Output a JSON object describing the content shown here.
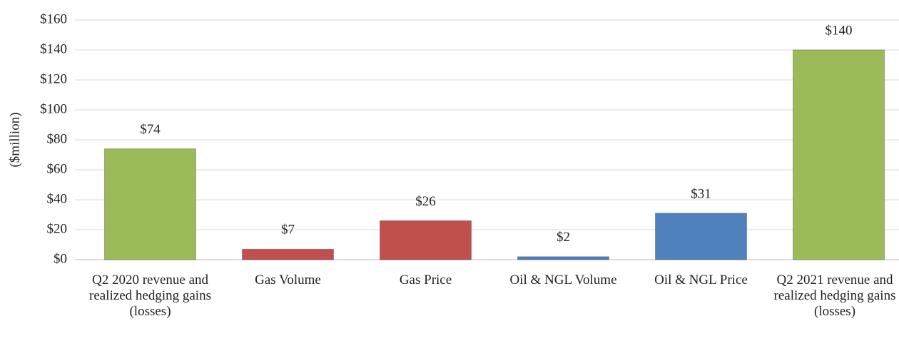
{
  "chart_data": {
    "type": "bar",
    "y_axis_label": "($million)",
    "categories": [
      "Q2 2020 revenue and realized hedging gains (losses)",
      "Gas Volume",
      "Gas Price",
      "Oil & NGL Volume",
      "Oil & NGL Price",
      "Q2 2021 revenue and realized hedging gains (losses)"
    ],
    "values": [
      74,
      7,
      26,
      2,
      31,
      140
    ],
    "value_labels": [
      "$74",
      "$7",
      "$26",
      "$2",
      "$31",
      "$140"
    ],
    "colors": [
      "#9bbb59",
      "#c0504d",
      "#c0504d",
      "#4f81bd",
      "#4f81bd",
      "#9bbb59"
    ],
    "ylim": [
      0,
      160
    ],
    "yticks": [
      {
        "value": 0,
        "label": "$0"
      },
      {
        "value": 20,
        "label": "$20"
      },
      {
        "value": 40,
        "label": "$40"
      },
      {
        "value": 60,
        "label": "$60"
      },
      {
        "value": 80,
        "label": "$80"
      },
      {
        "value": 100,
        "label": "$100"
      },
      {
        "value": 120,
        "label": "$120"
      },
      {
        "value": 140,
        "label": "$140"
      },
      {
        "value": 160,
        "label": "$160"
      }
    ],
    "grid": true
  }
}
